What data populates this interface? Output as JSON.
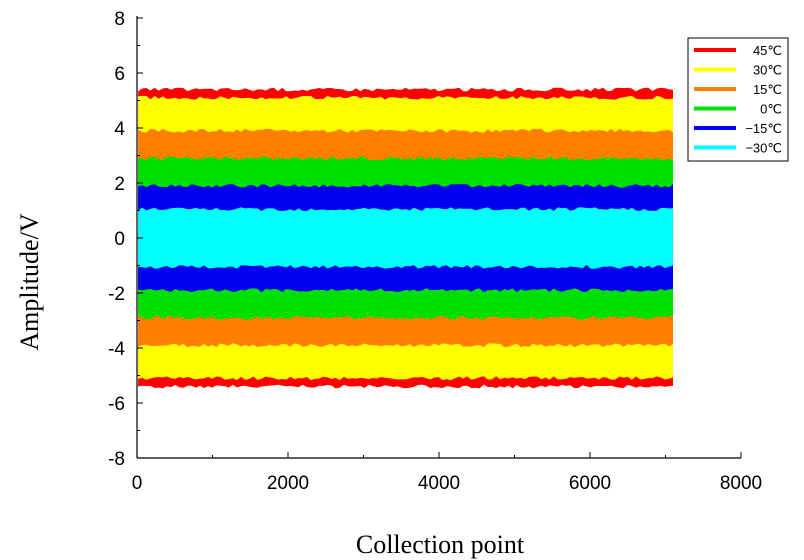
{
  "chart_data": {
    "type": "area",
    "title": "",
    "xlabel": "Collection point",
    "ylabel": "Amplitude/V",
    "xlim": [
      0,
      8000
    ],
    "ylim": [
      -8,
      8
    ],
    "xticks": [
      "0",
      "2000",
      "4000",
      "6000",
      "8000"
    ],
    "yticks": [
      "8",
      "6",
      "4",
      "2",
      "0",
      "-2",
      "-4",
      "-6",
      "-8"
    ],
    "grid": false,
    "legend_position": "top-right",
    "x_range_of_signal": [
      0,
      7100
    ],
    "series": [
      {
        "name": "45℃",
        "color": "#ff0000",
        "amplitude": 5.4
      },
      {
        "name": "30℃",
        "color": "#ffff00",
        "amplitude": 5.1
      },
      {
        "name": "15℃",
        "color": "#ff8000",
        "amplitude": 3.9
      },
      {
        "name": "0℃",
        "color": "#00e000",
        "amplitude": 2.9
      },
      {
        "name": "−15℃",
        "color": "#0000ee",
        "amplitude": 1.9
      },
      {
        "name": "−30℃",
        "color": "#00ffff",
        "amplitude": 1.05
      }
    ]
  }
}
